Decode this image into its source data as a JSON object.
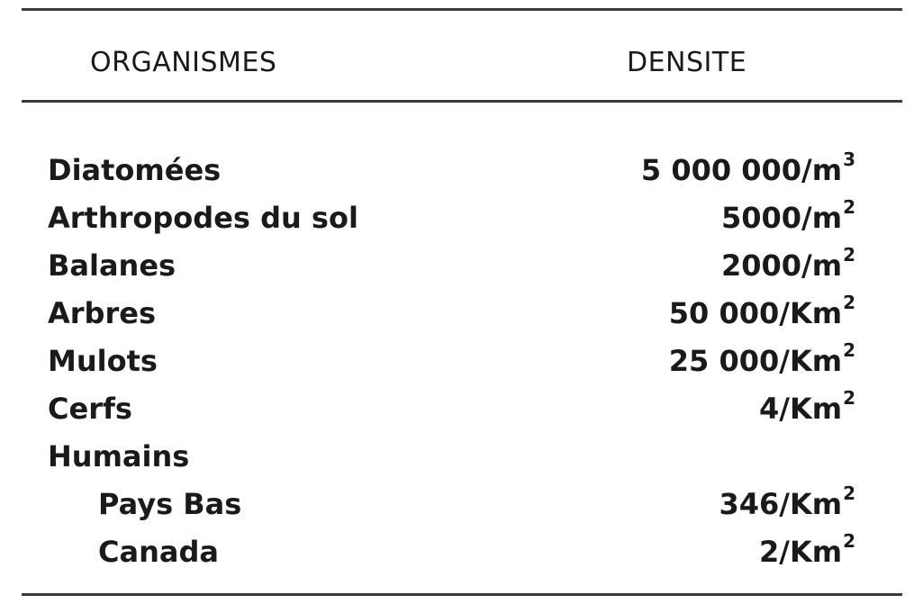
{
  "table": {
    "headers": {
      "organisms": "ORGANISMES",
      "density": "DENSITE"
    },
    "rows": [
      {
        "name": "Diatomées",
        "value": "5 000 000/m",
        "exp": "3",
        "indent": false
      },
      {
        "name": "Arthropodes du sol",
        "value": "5000/m",
        "exp": "2",
        "indent": false
      },
      {
        "name": "Balanes",
        "value": "2000/m",
        "exp": "2",
        "indent": false
      },
      {
        "name": "Arbres",
        "value": "50 000/Km",
        "exp": "2",
        "indent": false
      },
      {
        "name": "Mulots",
        "value": "25 000/Km",
        "exp": "2",
        "indent": false
      },
      {
        "name": "Cerfs",
        "value": "4/Km",
        "exp": "2",
        "indent": false
      },
      {
        "name": "Humains",
        "value": "",
        "exp": "",
        "indent": false
      },
      {
        "name": "Pays Bas",
        "value": "346/Km",
        "exp": "2",
        "indent": true
      },
      {
        "name": "Canada",
        "value": "2/Km",
        "exp": "2",
        "indent": true
      }
    ]
  }
}
